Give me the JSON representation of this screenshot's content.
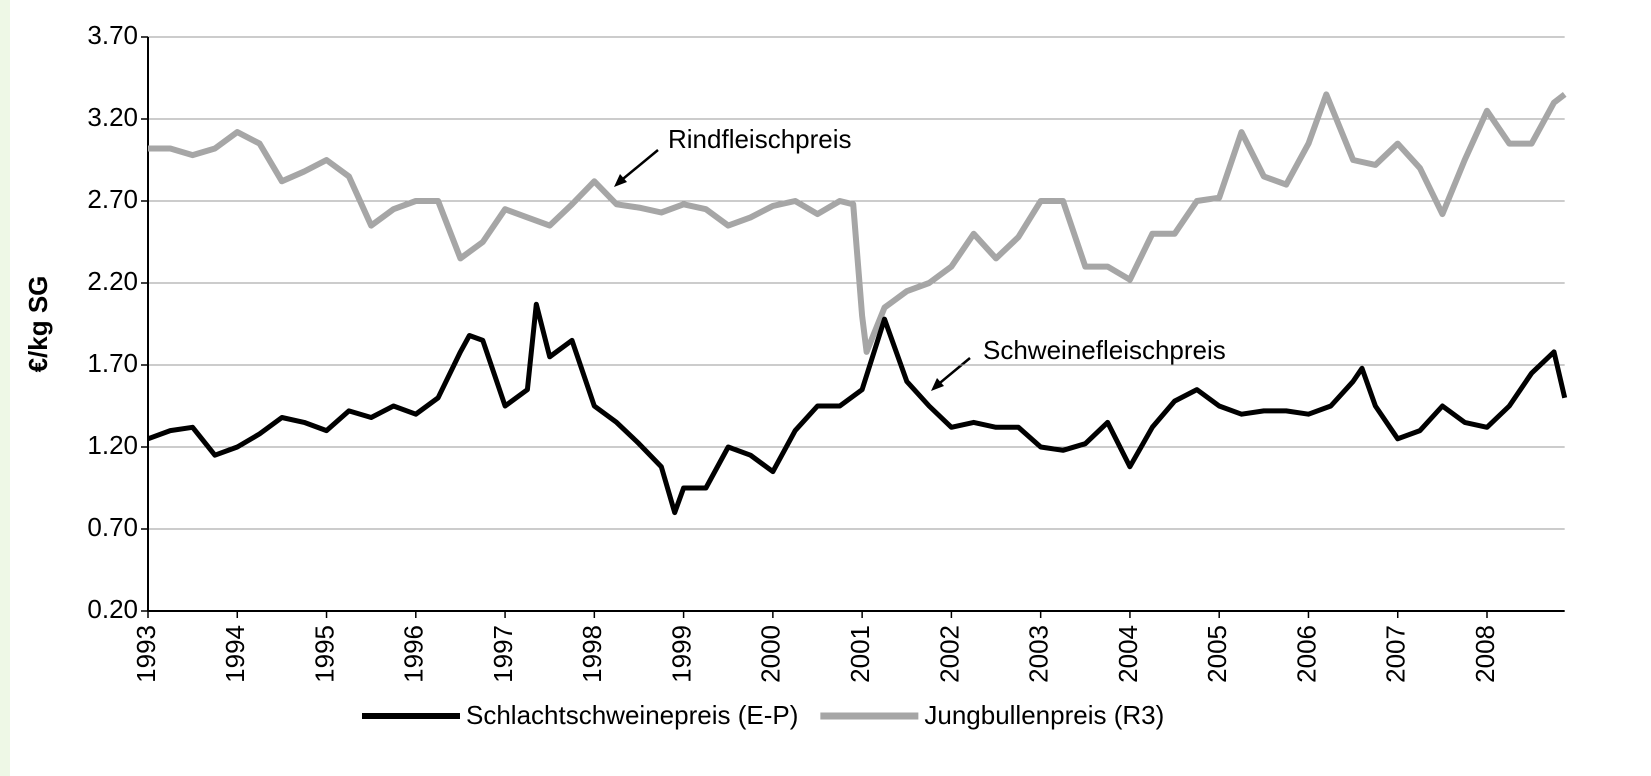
{
  "chart_data": {
    "type": "line",
    "y_label": "€/kg SG",
    "annotations": [
      "Rindfleischpreis",
      "Schweinefleischpreis"
    ],
    "xlim": [
      1993,
      2008.87
    ],
    "xticks": [
      1993,
      1994,
      1995,
      1996,
      1997,
      1998,
      1999,
      2000,
      2001,
      2002,
      2003,
      2004,
      2005,
      2006,
      2007,
      2008
    ],
    "ylim": [
      0.2,
      3.7
    ],
    "yticks": [
      {
        "value": 0.2,
        "label": "0.20"
      },
      {
        "value": 0.7,
        "label": "0.70"
      },
      {
        "value": 1.2,
        "label": "1.20"
      },
      {
        "value": 1.7,
        "label": "1.70"
      },
      {
        "value": 2.2,
        "label": "2.20"
      },
      {
        "value": 2.7,
        "label": "2.70"
      },
      {
        "value": 3.2,
        "label": "3.20"
      },
      {
        "value": 3.7,
        "label": "3.70"
      }
    ],
    "grid": true,
    "legend": "bottom",
    "series": [
      {
        "name": "Schlachtschweinepreis (E-P)",
        "color": "#000000",
        "x": [
          1993.0,
          1993.25,
          1993.5,
          1993.75,
          1994.0,
          1994.25,
          1994.5,
          1994.75,
          1995.0,
          1995.25,
          1995.5,
          1995.75,
          1996.0,
          1996.25,
          1996.5,
          1996.6,
          1996.75,
          1997.0,
          1997.25,
          1997.35,
          1997.5,
          1997.75,
          1998.0,
          1998.25,
          1998.5,
          1998.75,
          1998.9,
          1999.0,
          1999.25,
          1999.5,
          1999.75,
          2000.0,
          2000.25,
          2000.5,
          2000.75,
          2001.0,
          2001.25,
          2001.5,
          2001.75,
          2002.0,
          2002.25,
          2002.5,
          2002.75,
          2003.0,
          2003.25,
          2003.5,
          2003.75,
          2004.0,
          2004.25,
          2004.5,
          2004.75,
          2005.0,
          2005.25,
          2005.5,
          2005.75,
          2006.0,
          2006.25,
          2006.5,
          2006.6,
          2006.75,
          2007.0,
          2007.25,
          2007.5,
          2007.75,
          2008.0,
          2008.25,
          2008.5,
          2008.75,
          2008.87
        ],
        "values": [
          1.25,
          1.3,
          1.32,
          1.15,
          1.2,
          1.28,
          1.38,
          1.35,
          1.3,
          1.42,
          1.38,
          1.45,
          1.4,
          1.5,
          1.78,
          1.88,
          1.85,
          1.45,
          1.55,
          2.07,
          1.75,
          1.85,
          1.45,
          1.35,
          1.22,
          1.08,
          0.8,
          0.95,
          0.95,
          1.2,
          1.15,
          1.05,
          1.3,
          1.45,
          1.45,
          1.55,
          1.98,
          1.6,
          1.45,
          1.32,
          1.35,
          1.32,
          1.32,
          1.2,
          1.18,
          1.22,
          1.35,
          1.08,
          1.32,
          1.48,
          1.55,
          1.45,
          1.4,
          1.42,
          1.42,
          1.4,
          1.45,
          1.6,
          1.68,
          1.45,
          1.25,
          1.3,
          1.45,
          1.35,
          1.32,
          1.45,
          1.65,
          1.78,
          1.5
        ]
      },
      {
        "name": "Jungbullenpreis (R3)",
        "color": "#a6a6a6",
        "x": [
          1993.0,
          1993.25,
          1993.5,
          1993.75,
          1994.0,
          1994.25,
          1994.5,
          1994.75,
          1995.0,
          1995.25,
          1995.5,
          1995.75,
          1996.0,
          1996.25,
          1996.5,
          1996.75,
          1997.0,
          1997.25,
          1997.5,
          1997.75,
          1998.0,
          1998.25,
          1998.5,
          1998.75,
          1999.0,
          1999.25,
          1999.5,
          1999.75,
          2000.0,
          2000.25,
          2000.5,
          2000.75,
          2000.9,
          2001.0,
          2001.05,
          2001.25,
          2001.5,
          2001.75,
          2002.0,
          2002.25,
          2002.5,
          2002.75,
          2003.0,
          2003.25,
          2003.5,
          2003.75,
          2004.0,
          2004.25,
          2004.5,
          2004.75,
          2005.0,
          2005.25,
          2005.5,
          2005.75,
          2006.0,
          2006.2,
          2006.5,
          2006.75,
          2007.0,
          2007.25,
          2007.5,
          2007.75,
          2008.0,
          2008.25,
          2008.5,
          2008.75,
          2008.87
        ],
        "values": [
          3.02,
          3.02,
          2.98,
          3.02,
          3.12,
          3.05,
          2.82,
          2.88,
          2.95,
          2.85,
          2.55,
          2.65,
          2.7,
          2.7,
          2.35,
          2.45,
          2.65,
          2.6,
          2.55,
          2.68,
          2.82,
          2.68,
          2.66,
          2.63,
          2.68,
          2.65,
          2.55,
          2.6,
          2.67,
          2.7,
          2.62,
          2.7,
          2.68,
          2.0,
          1.78,
          2.05,
          2.15,
          2.2,
          2.3,
          2.5,
          2.35,
          2.48,
          2.7,
          2.7,
          2.3,
          2.3,
          2.22,
          2.5,
          2.5,
          2.7,
          2.72,
          3.12,
          2.85,
          2.8,
          3.05,
          3.35,
          2.95,
          2.92,
          3.05,
          2.9,
          2.62,
          2.95,
          3.25,
          3.05,
          3.05,
          3.3,
          3.35
        ]
      }
    ]
  }
}
